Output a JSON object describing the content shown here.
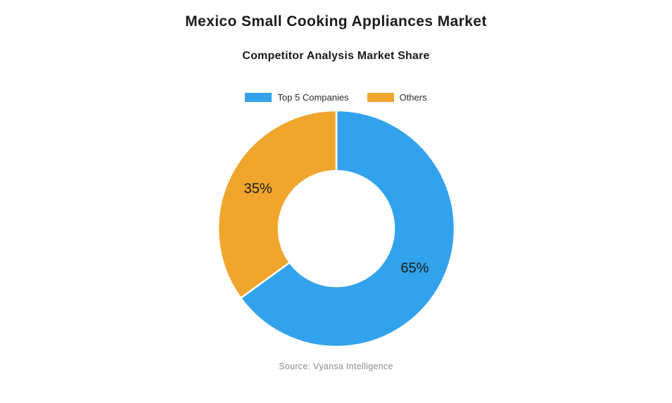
{
  "header": {
    "title": "Mexico Small Cooking Appliances Market",
    "subtitle": "Competitor Analysis Market Share"
  },
  "footer": {
    "source": "Source: Vyansa Intelligence"
  },
  "chart_data": {
    "type": "pie",
    "subtype": "donut",
    "title": "Competitor Analysis Market Share",
    "categories": [
      "Top 5 Companies",
      "Others"
    ],
    "values": [
      65,
      35
    ],
    "slice_labels": [
      "65%",
      "35%"
    ],
    "unit": "%",
    "colors": [
      "#33A2EC",
      "#F0A62D"
    ],
    "slice_border_color": "#ffffff",
    "label_color": "#1a1a1a",
    "start_angle_deg": 0,
    "direction": "clockwise",
    "inner_radius_ratio": 0.49,
    "legend_position": "top",
    "background": "#ffffff"
  }
}
